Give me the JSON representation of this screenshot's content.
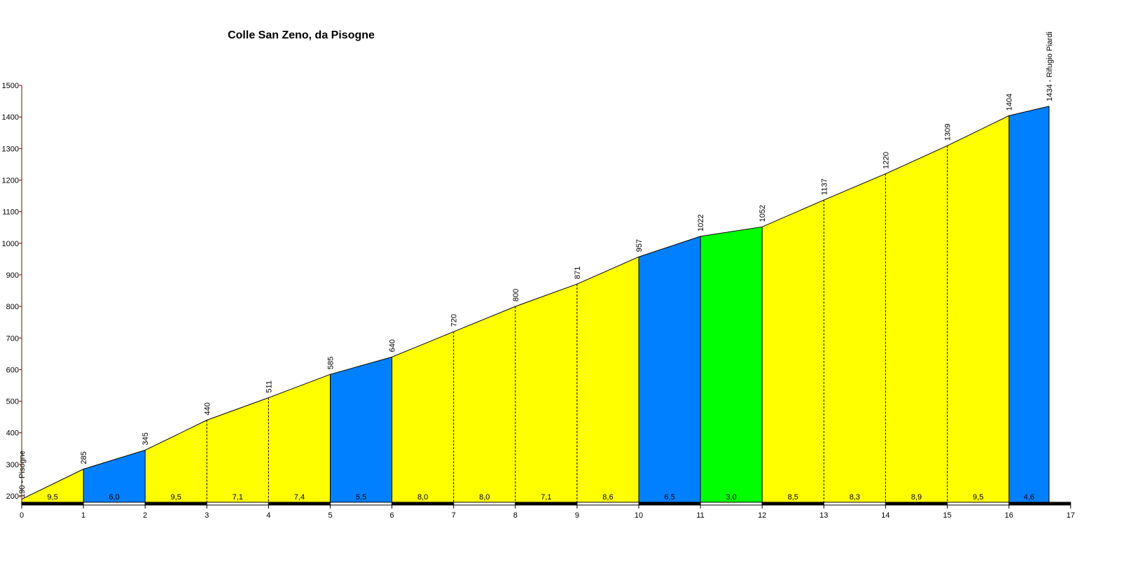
{
  "chart_data": {
    "type": "area",
    "title": "Colle San Zeno, da Pisogne",
    "xlabel": "",
    "ylabel": "",
    "xlim": [
      0,
      17
    ],
    "ylim": [
      175,
      1500
    ],
    "x_ticks": [
      "0",
      "1",
      "2",
      "3",
      "4",
      "5",
      "6",
      "7",
      "8",
      "9",
      "10",
      "11",
      "12",
      "13",
      "14",
      "15",
      "16",
      "17"
    ],
    "y_ticks": [
      "200",
      "300",
      "400",
      "500",
      "600",
      "700",
      "800",
      "900",
      "1000",
      "1100",
      "1200",
      "1300",
      "1400",
      "1500"
    ],
    "grid": false,
    "profile": {
      "x": [
        0,
        1,
        2,
        3,
        4,
        5,
        6,
        7,
        8,
        9,
        10,
        11,
        12,
        13,
        14,
        15,
        16,
        16.65
      ],
      "elevation": [
        190,
        285,
        345,
        440,
        511,
        585,
        640,
        720,
        800,
        871,
        957,
        1022,
        1052,
        1137,
        1220,
        1309,
        1404,
        1434
      ]
    },
    "point_labels": [
      "190 - Pisogne",
      "285",
      "345",
      "440",
      "511",
      "585",
      "640",
      "720",
      "800",
      "871",
      "957",
      "1022",
      "1052",
      "1137",
      "1220",
      "1309",
      "1404",
      "1434 - Rifugio Piardi"
    ],
    "segments": [
      {
        "gradient": "9,5",
        "color": "#ffff00"
      },
      {
        "gradient": "6,0",
        "color": "#0080ff"
      },
      {
        "gradient": "9,5",
        "color": "#ffff00"
      },
      {
        "gradient": "7,1",
        "color": "#ffff00"
      },
      {
        "gradient": "7,4",
        "color": "#ffff00"
      },
      {
        "gradient": "5,5",
        "color": "#0080ff"
      },
      {
        "gradient": "8,0",
        "color": "#ffff00"
      },
      {
        "gradient": "8,0",
        "color": "#ffff00"
      },
      {
        "gradient": "7,1",
        "color": "#ffff00"
      },
      {
        "gradient": "8,6",
        "color": "#ffff00"
      },
      {
        "gradient": "6,5",
        "color": "#0080ff"
      },
      {
        "gradient": "3,0",
        "color": "#00ff00"
      },
      {
        "gradient": "8,5",
        "color": "#ffff00"
      },
      {
        "gradient": "8,3",
        "color": "#ffff00"
      },
      {
        "gradient": "8,9",
        "color": "#ffff00"
      },
      {
        "gradient": "9,5",
        "color": "#ffff00"
      },
      {
        "gradient": "4,6",
        "color": "#0080ff"
      }
    ],
    "axis_color": "#800000"
  }
}
